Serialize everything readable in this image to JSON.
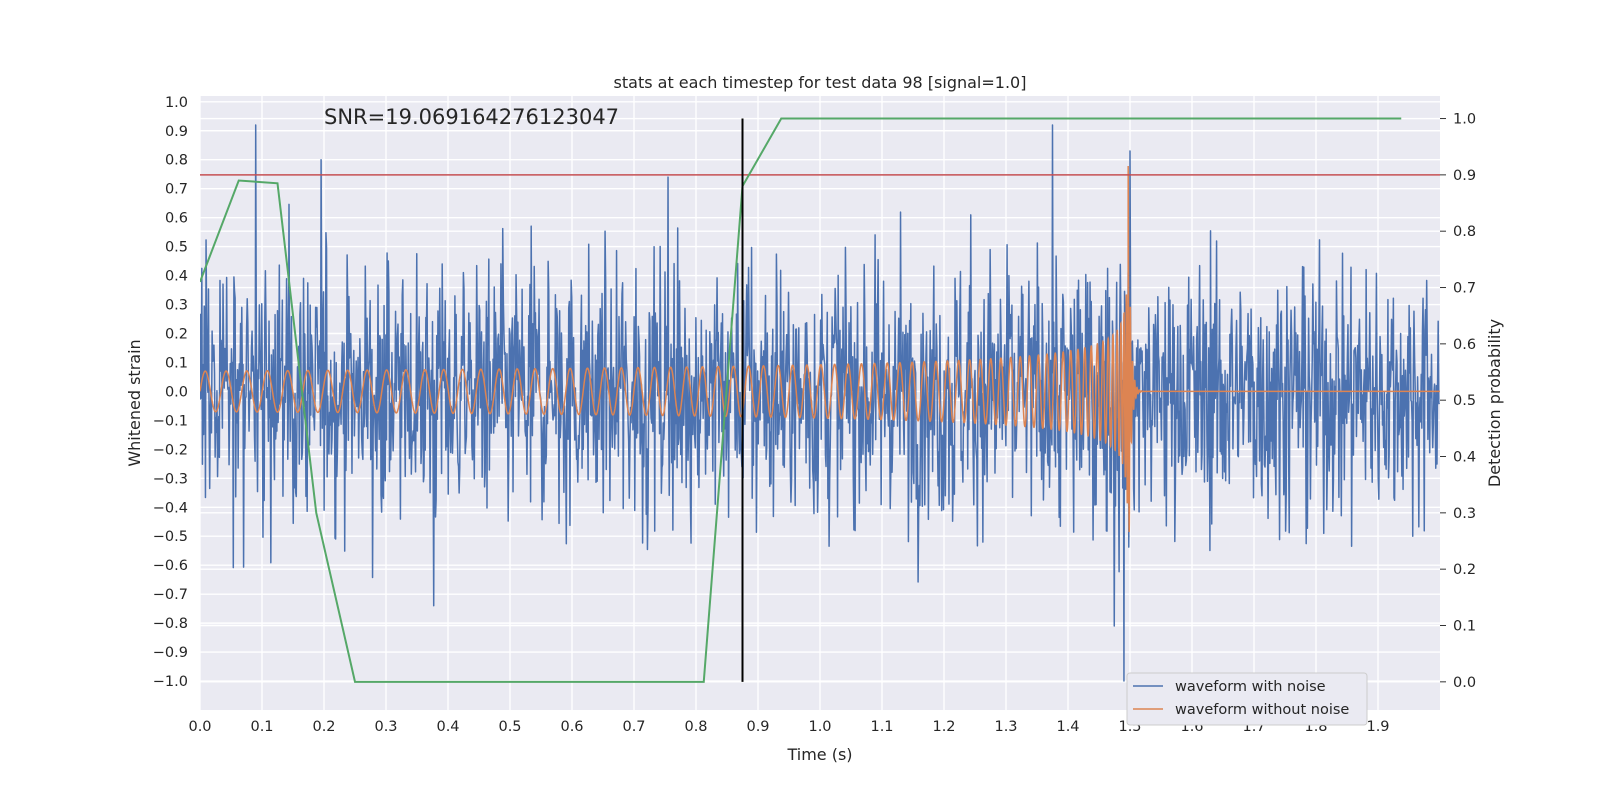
{
  "chart_data": {
    "type": "line",
    "title": "stats at each timestep for test data 98 [signal=1.0]",
    "xlabel": "Time (s)",
    "ylabel": "Whitened strain",
    "y2label": "Detection probability",
    "xlim": [
      0.0,
      2.0
    ],
    "ylim": [
      -1.1,
      1.02
    ],
    "y2lim": [
      -0.05,
      1.04
    ],
    "grid": true,
    "x_ticks": [
      "0.0",
      "0.1",
      "0.2",
      "0.3",
      "0.4",
      "0.5",
      "0.6",
      "0.7",
      "0.8",
      "0.9",
      "1.0",
      "1.1",
      "1.2",
      "1.3",
      "1.4",
      "1.5",
      "1.6",
      "1.7",
      "1.8",
      "1.9"
    ],
    "y_ticks": [
      "1.0",
      "0.9",
      "0.8",
      "0.7",
      "0.6",
      "0.5",
      "0.4",
      "0.3",
      "0.2",
      "0.1",
      "0.0",
      "−0.1",
      "−0.2",
      "−0.3",
      "−0.4",
      "−0.5",
      "−0.6",
      "−0.7",
      "−0.8",
      "−0.9",
      "−1.0"
    ],
    "y2_ticks": [
      "1.0",
      "0.9",
      "0.8",
      "0.7",
      "0.6",
      "0.5",
      "0.4",
      "0.3",
      "0.2",
      "0.1",
      "0.0"
    ],
    "annotation": "SNR=19.069164276123047",
    "legend": {
      "position": "lower-right",
      "entries": [
        "waveform with noise",
        "waveform without noise"
      ]
    },
    "colors": {
      "noisy": "#4c72b0",
      "clean": "#dd8452",
      "prob": "#55a868",
      "threshold": "#c44e52",
      "vline": "#000000",
      "axes_bg": "#eaeaf2"
    },
    "threshold_probability": 0.9,
    "vline_time": 0.875,
    "noisy_waveform": {
      "sample_rate_hz": 1024,
      "std": 0.22,
      "spikes": [
        [
          0.09,
          0.92
        ],
        [
          0.195,
          0.8
        ],
        [
          0.755,
          0.74
        ],
        [
          1.375,
          0.92
        ],
        [
          1.475,
          -0.81
        ],
        [
          1.49,
          -1.0
        ],
        [
          1.5,
          0.83
        ],
        [
          0.377,
          -0.74
        ]
      ]
    },
    "clean_waveform": {
      "start_freq_hz": 29.5,
      "merger_time": 1.497,
      "amplitude_start": 0.07,
      "amplitude_peak": 0.8,
      "ringdown_end": 1.515
    },
    "detection_probability": {
      "t": [
        0.0,
        0.0625,
        0.125,
        0.1875,
        0.25,
        0.3125,
        0.375,
        0.4375,
        0.5,
        0.5625,
        0.625,
        0.6875,
        0.75,
        0.8125,
        0.875,
        0.9375,
        1.0,
        1.0625,
        1.125,
        1.1875,
        1.25,
        1.3125,
        1.375,
        1.4375,
        1.5,
        1.5625,
        1.625,
        1.6875,
        1.75,
        1.8125,
        1.875,
        1.9375
      ],
      "p": [
        0.71,
        0.89,
        0.885,
        0.3,
        0.0,
        0.0,
        0.0,
        0.0,
        0.0,
        0.0,
        0.0,
        0.0,
        0.0,
        0.0,
        0.88,
        1.0,
        1.0,
        1.0,
        1.0,
        1.0,
        1.0,
        1.0,
        1.0,
        1.0,
        1.0,
        1.0,
        1.0,
        1.0,
        1.0,
        1.0,
        1.0,
        1.0
      ]
    }
  }
}
